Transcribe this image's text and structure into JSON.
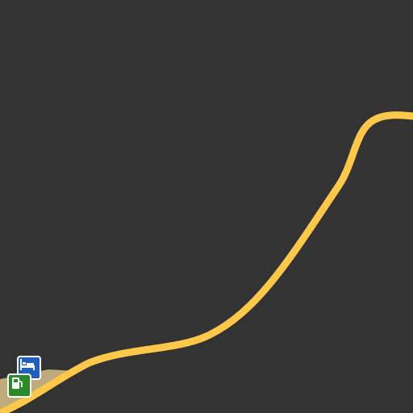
{
  "map": {
    "background_color": "#333333",
    "road_color": "#ffc84a",
    "area_color": "#d8c08a"
  },
  "pois": [
    {
      "type": "hotel",
      "icon": "bed-icon",
      "color": "#1f5fbf"
    },
    {
      "type": "fuel-station",
      "icon": "fuel-pump-icon",
      "color": "#2a8a2a"
    }
  ]
}
